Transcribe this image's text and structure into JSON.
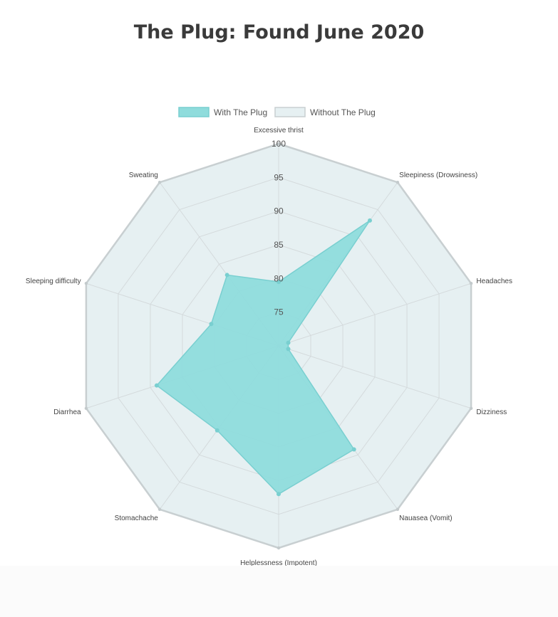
{
  "title": "The Plug: Found June 2020",
  "chart_data": {
    "type": "radar",
    "labels": [
      "Excessive thrist",
      "Sleepiness (Drowsiness)",
      "Headaches",
      "Dizziness",
      "Nauasea (Vomit)",
      "Helplessness (Impotent)",
      "Stomachache",
      "Diarrhea",
      "Sleeping difficulty",
      "Sweating"
    ],
    "scale": {
      "min": 70,
      "max": 100,
      "ticks": [
        75,
        80,
        85,
        90,
        95,
        100
      ]
    },
    "highlight_tick": 75,
    "series": [
      {
        "name": "With The Plug",
        "values": [
          79.5,
          93,
          71.5,
          71.5,
          89,
          92,
          85.5,
          89,
          80.5,
          83
        ],
        "fill": "#8fdcdc",
        "stroke": "#79cfd0"
      },
      {
        "name": "Without The Plug",
        "values": [
          100,
          100,
          100,
          100,
          100,
          100,
          100,
          100,
          100,
          100
        ],
        "fill": "#e6f0f2",
        "stroke": "#c8cfd1"
      }
    ],
    "legend_position": "top",
    "colors": {
      "grid": "#d4dadc",
      "highlight_tick": "#3cbfc4"
    }
  }
}
